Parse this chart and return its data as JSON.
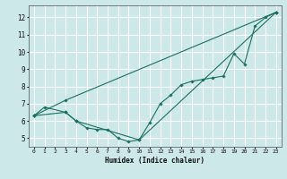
{
  "title": "",
  "xlabel": "Humidex (Indice chaleur)",
  "ylabel": "",
  "bg_color": "#cce8e8",
  "grid_color": "#ffffff",
  "line_color": "#1a7060",
  "xlim": [
    -0.5,
    23.5
  ],
  "ylim": [
    4.5,
    12.7
  ],
  "xticks": [
    0,
    1,
    2,
    3,
    4,
    5,
    6,
    7,
    8,
    9,
    10,
    11,
    12,
    13,
    14,
    15,
    16,
    17,
    18,
    19,
    20,
    21,
    22,
    23
  ],
  "yticks": [
    5,
    6,
    7,
    8,
    9,
    10,
    11,
    12
  ],
  "series": [
    {
      "x": [
        0,
        1,
        3,
        4,
        10,
        11,
        12,
        13,
        14,
        15,
        16,
        17,
        18,
        19,
        20,
        21,
        22,
        23
      ],
      "y": [
        6.3,
        6.8,
        6.5,
        6.0,
        4.9,
        5.9,
        7.0,
        7.5,
        8.1,
        8.3,
        8.4,
        8.5,
        8.6,
        9.9,
        9.3,
        11.5,
        12.0,
        12.3
      ]
    },
    {
      "x": [
        0,
        3,
        4,
        5,
        6,
        7,
        8,
        9,
        10,
        23
      ],
      "y": [
        6.3,
        6.5,
        6.0,
        5.6,
        5.5,
        5.5,
        5.0,
        4.8,
        4.9,
        12.3
      ]
    },
    {
      "x": [
        0,
        3,
        23
      ],
      "y": [
        6.3,
        7.2,
        12.3
      ]
    }
  ]
}
